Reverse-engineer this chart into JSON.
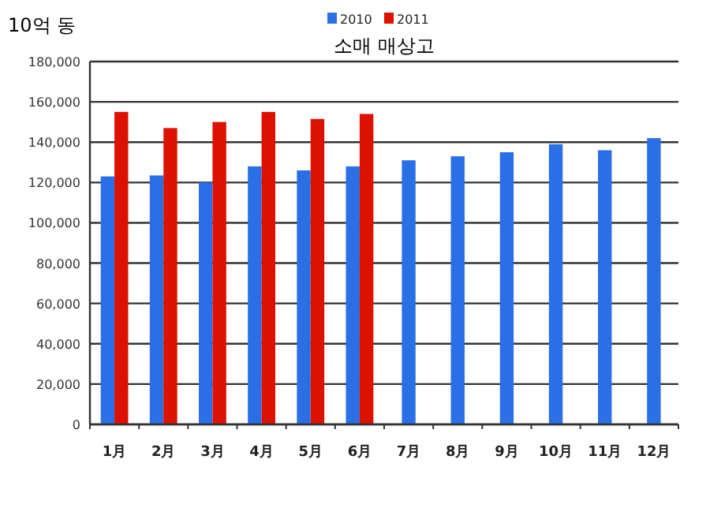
{
  "chart_data": {
    "type": "bar",
    "title": "소매 매상고",
    "ylabel": "10억 동",
    "categories": [
      "1月",
      "2月",
      "3月",
      "4月",
      "5月",
      "6月",
      "7月",
      "8月",
      "9月",
      "10月",
      "11月",
      "12月"
    ],
    "series": [
      {
        "name": "2010",
        "color": "#2a6fe6",
        "values": [
          123000,
          123500,
          120000,
          128000,
          126000,
          128000,
          131000,
          133000,
          135000,
          139000,
          136000,
          142000
        ]
      },
      {
        "name": "2011",
        "color": "#dd1100",
        "values": [
          155000,
          147000,
          150000,
          155000,
          151500,
          154000,
          null,
          null,
          null,
          null,
          null,
          null
        ]
      }
    ],
    "ylim": [
      0,
      180000
    ],
    "yticks": [
      {
        "value": 0,
        "label": "0"
      },
      {
        "value": 20000,
        "label": "20,000"
      },
      {
        "value": 40000,
        "label": "40,000"
      },
      {
        "value": 60000,
        "label": "60,000"
      },
      {
        "value": 80000,
        "label": "80,000"
      },
      {
        "value": 100000,
        "label": "100,000"
      },
      {
        "value": 120000,
        "label": "120,000"
      },
      {
        "value": 140000,
        "label": "140,000"
      },
      {
        "value": 160000,
        "label": "160,000"
      },
      {
        "value": 180000,
        "label": "180,000"
      }
    ],
    "grid": "y",
    "legend": "top"
  }
}
